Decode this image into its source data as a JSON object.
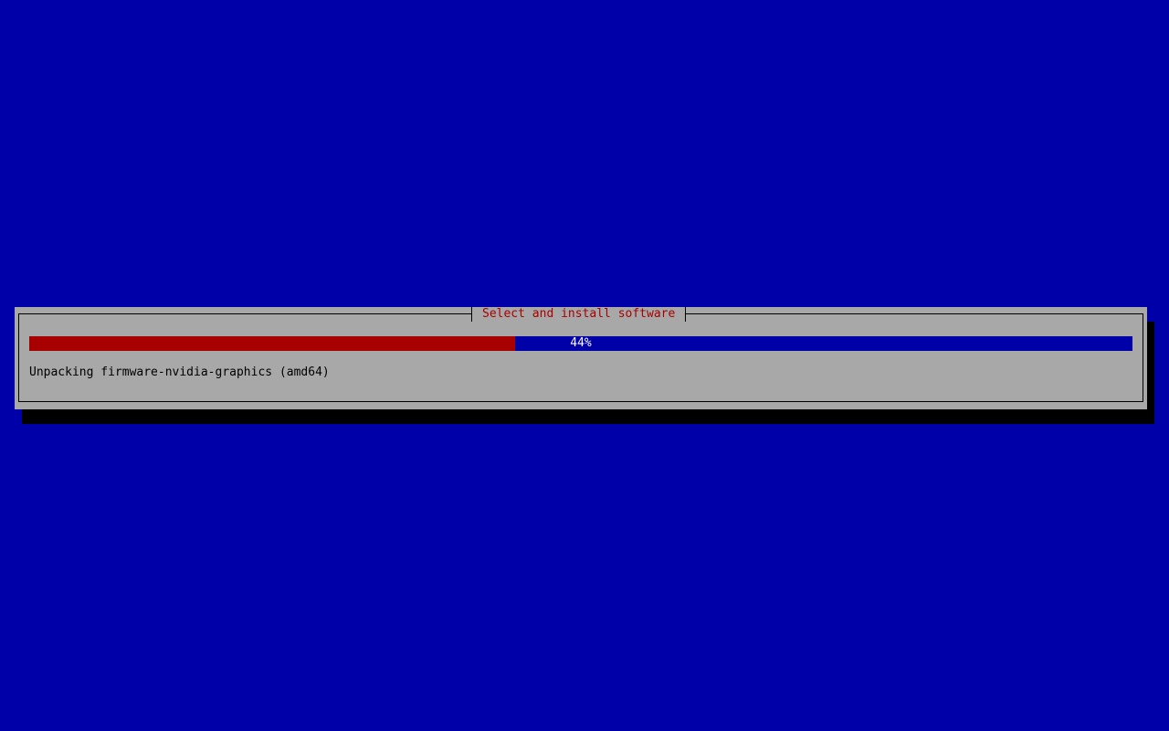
{
  "colors": {
    "background": "#0000a8",
    "dialog": "#a8a8a8",
    "title": "#a80000",
    "progress_fill": "#a80000",
    "progress_track": "#0000a8"
  },
  "dialog": {
    "title": "Select and install software",
    "progress": {
      "percent": 44,
      "label": "44%"
    },
    "status": "Unpacking firmware-nvidia-graphics (amd64)"
  }
}
